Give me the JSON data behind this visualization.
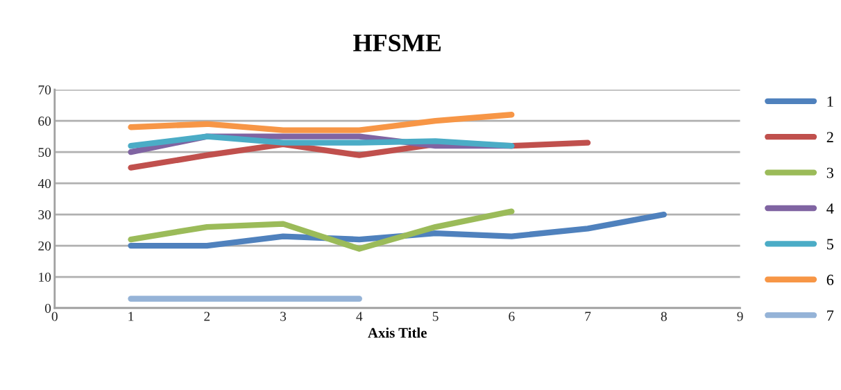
{
  "chart_data": {
    "type": "line",
    "title": "HFSME",
    "xlabel": "Axis Title",
    "xlim": [
      0,
      9
    ],
    "xticks": [
      0,
      1,
      2,
      3,
      4,
      5,
      6,
      7,
      8,
      9
    ],
    "ylim": [
      0,
      70
    ],
    "yticks": [
      0,
      10,
      20,
      30,
      40,
      50,
      60,
      70
    ],
    "grid": "y",
    "legend": "right",
    "marker": "none",
    "line_style": "solid",
    "series": [
      {
        "name": "1",
        "color": "#4f81bd",
        "x": [
          1,
          2,
          3,
          4,
          5,
          6,
          7,
          8
        ],
        "values": [
          20,
          20,
          23,
          22,
          24,
          23,
          25.5,
          30
        ]
      },
      {
        "name": "2",
        "color": "#c0504d",
        "x": [
          1,
          2,
          3,
          4,
          5,
          6,
          7
        ],
        "values": [
          45,
          49,
          52.5,
          49,
          52.5,
          52,
          53
        ]
      },
      {
        "name": "3",
        "color": "#9bbb59",
        "x": [
          1,
          2,
          3,
          4,
          5,
          6
        ],
        "values": [
          22,
          26,
          27,
          19,
          26,
          31
        ]
      },
      {
        "name": "4",
        "color": "#8064a2",
        "x": [
          1,
          2,
          3,
          4,
          5,
          6
        ],
        "values": [
          50,
          55,
          55,
          55,
          52,
          52
        ]
      },
      {
        "name": "5",
        "color": "#4bacc6",
        "x": [
          1,
          2,
          3,
          4,
          5,
          6
        ],
        "values": [
          52,
          55,
          53,
          53,
          53.5,
          52
        ]
      },
      {
        "name": "6",
        "color": "#f79646",
        "x": [
          1,
          2,
          3,
          4,
          5,
          6
        ],
        "values": [
          58,
          59,
          57,
          57,
          60,
          62
        ]
      },
      {
        "name": "7",
        "color": "#95b3d7",
        "x": [
          1,
          2,
          3,
          4
        ],
        "values": [
          3,
          3,
          3,
          3
        ]
      }
    ]
  }
}
